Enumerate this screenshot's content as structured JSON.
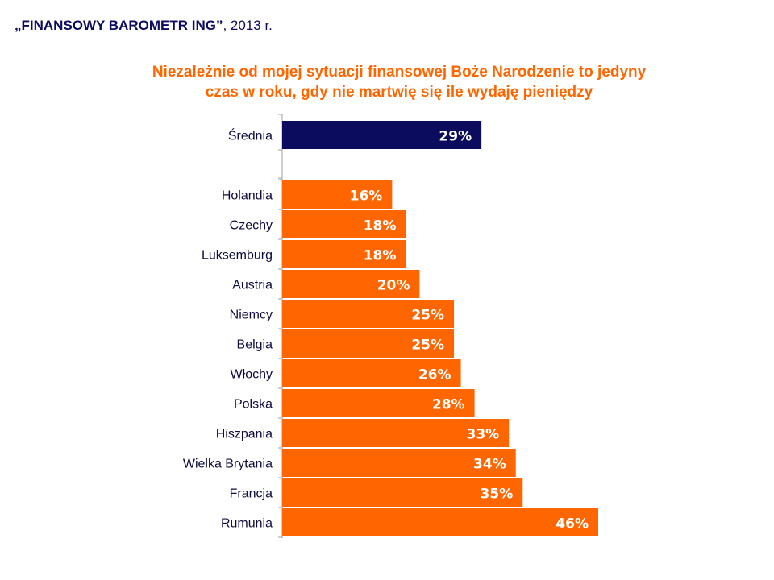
{
  "header": {
    "brand": "„FINANSOWY BAROMETR ING”",
    "suffix": ", 2013 r."
  },
  "chart_data": {
    "type": "bar",
    "orientation": "horizontal",
    "title": "Niezależnie od mojej sytuacji finansowej Boże Narodzenie to jedyny czas w roku, gdy nie martwię się ile wydaję pieniędzy",
    "title_lines": [
      "Niezależnie od mojej sytuacji finansowej Boże Narodzenie to jedyny",
      "czas w roku, gdy nie martwię się ile wydaję pieniędzy"
    ],
    "unit": "%",
    "average": {
      "label": "Średnia",
      "value": 29,
      "display": "29%",
      "color": "#0c0c5e"
    },
    "categories": [
      "Holandia",
      "Czechy",
      "Luksemburg",
      "Austria",
      "Niemcy",
      "Belgia",
      "Włochy",
      "Polska",
      "Hiszpania",
      "Wielka Brytania",
      "Francja",
      "Rumunia"
    ],
    "values": [
      16,
      18,
      18,
      20,
      25,
      25,
      26,
      28,
      33,
      34,
      35,
      46
    ],
    "labels": [
      "16%",
      "18%",
      "18%",
      "20%",
      "25%",
      "25%",
      "26%",
      "28%",
      "33%",
      "34%",
      "35%",
      "46%"
    ],
    "bar_color": "#ff6600",
    "xlim": [
      0,
      46
    ],
    "grid": false,
    "legend": "none"
  }
}
